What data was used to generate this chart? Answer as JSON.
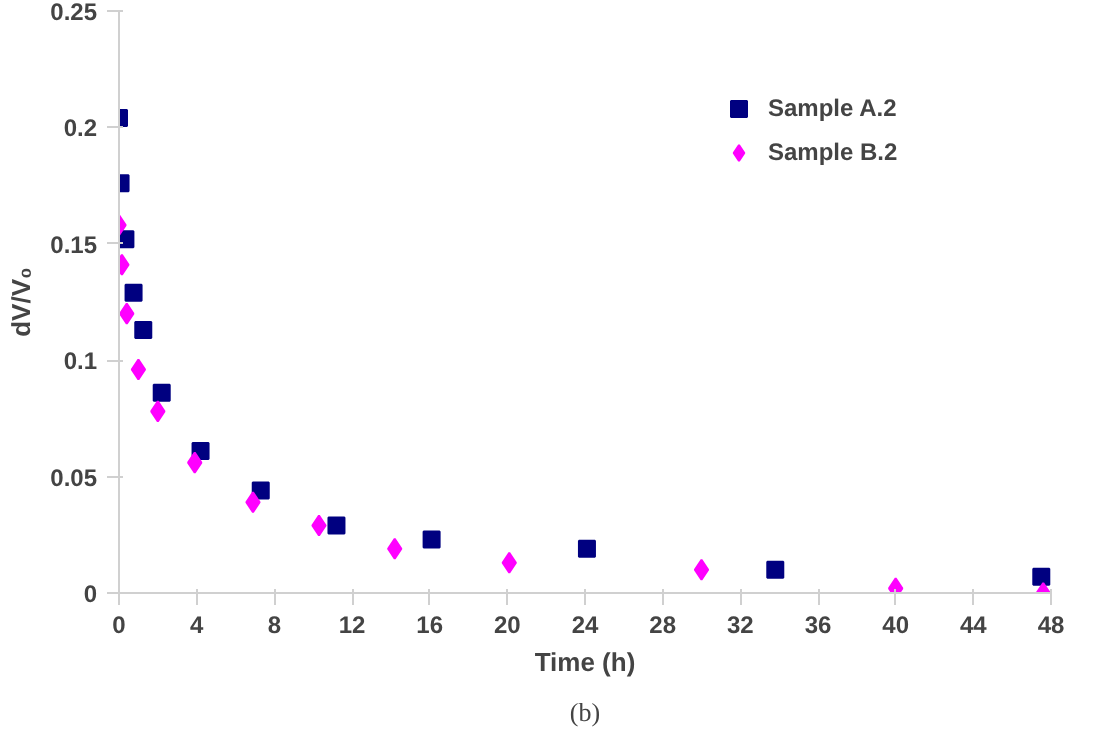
{
  "chart_data": {
    "type": "scatter",
    "xlabel": "Time (h)",
    "ylabel": "dV/V₀",
    "xlim": [
      0,
      48
    ],
    "xticks": [
      0,
      4,
      8,
      12,
      16,
      20,
      24,
      28,
      32,
      36,
      40,
      44,
      48
    ],
    "ylim": [
      0,
      0.25
    ],
    "yticks": [
      0,
      0.05,
      0.1,
      0.15,
      0.2,
      0.25
    ],
    "grid": false,
    "legend": "top right",
    "series": [
      {
        "name": "Sample A.2",
        "color": "#000080",
        "marker": "square",
        "x": [
          0,
          0.08,
          0.33,
          0.75,
          1.25,
          2.2,
          4.2,
          7.3,
          11.2,
          16.1,
          24.1,
          33.8,
          47.5
        ],
        "values": [
          0.204,
          0.176,
          0.152,
          0.129,
          0.113,
          0.086,
          0.061,
          0.044,
          0.029,
          0.023,
          0.019,
          0.01,
          0.007
        ]
      },
      {
        "name": "Sample B.2",
        "color": "#ff00ff",
        "marker": "diamond",
        "x": [
          0,
          0.15,
          0.4,
          1.0,
          2.0,
          3.9,
          6.9,
          10.3,
          14.2,
          20.1,
          30.0,
          40.0,
          47.6
        ],
        "values": [
          0.158,
          0.141,
          0.12,
          0.096,
          0.078,
          0.056,
          0.039,
          0.029,
          0.019,
          0.013,
          0.01,
          0.002,
          0.0
        ]
      }
    ],
    "annotations": [
      "(b)"
    ]
  }
}
